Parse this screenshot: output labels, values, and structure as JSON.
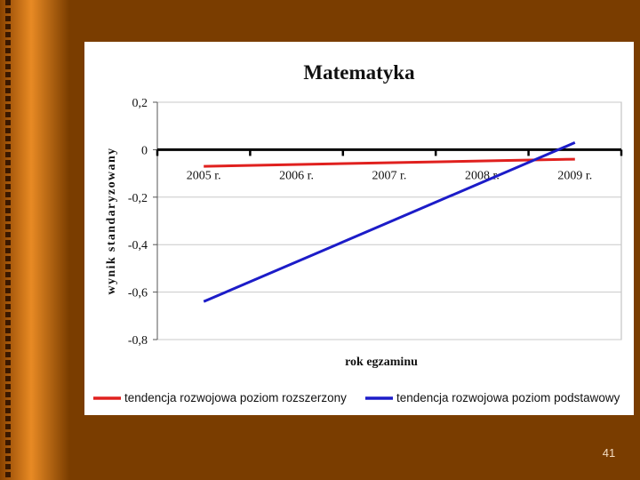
{
  "slide": {
    "page_number": "41",
    "colors": {
      "background": "#7a3d00",
      "border_dark": "#4a2000",
      "border_light": "#d97a1c"
    }
  },
  "chart_data": {
    "type": "line",
    "title": "Matematyka",
    "xlabel": "rok egzaminu",
    "ylabel": "wynik standaryzowany",
    "categories": [
      "2005 r.",
      "2006 r.",
      "2007 r.",
      "2008 r.",
      "2009 r."
    ],
    "ylim": [
      -0.8,
      0.2
    ],
    "yticks": [
      0.2,
      0,
      -0.2,
      -0.4,
      -0.6,
      -0.8
    ],
    "ytick_labels": [
      "0,2",
      "0",
      "-0,2",
      "-0,4",
      "-0,6",
      "-0,8"
    ],
    "grid": true,
    "legend_position": "bottom",
    "series": [
      {
        "name": "tendencja rozwojowa poziom rozszerzony",
        "color": "#e0201e",
        "x": [
          0,
          4
        ],
        "values": [
          -0.07,
          -0.04
        ]
      },
      {
        "name": "tendencja rozwojowa poziom podstawowy",
        "color": "#1c1cc8",
        "x": [
          0,
          4
        ],
        "values": [
          -0.64,
          0.03
        ]
      }
    ]
  }
}
